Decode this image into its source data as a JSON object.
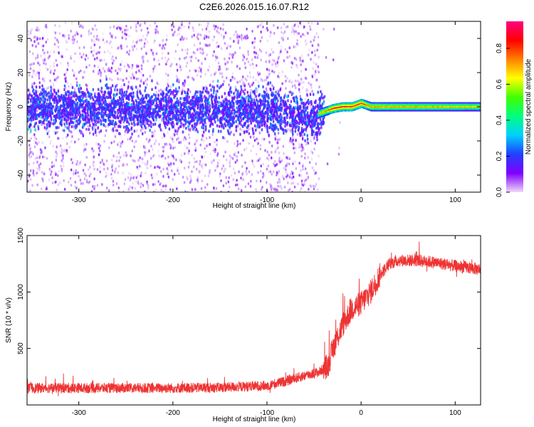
{
  "title": "C2E6.2026.015.16.07.R12",
  "chart_data": [
    {
      "type": "heatmap",
      "xlabel": "Height of straight line (km)",
      "ylabel": "Frequency (Hz)",
      "xlim": [
        -355,
        127
      ],
      "ylim": [
        -50,
        50
      ],
      "xticks": [
        -300,
        -200,
        -100,
        0,
        100
      ],
      "yticks": [
        -40,
        -20,
        0,
        20,
        40
      ],
      "colorbar": {
        "label": "Normalized spectral amplitude",
        "range": [
          0,
          0.95
        ],
        "ticks": [
          0,
          0.2,
          0.4,
          0.6,
          0.8
        ],
        "tick_labels": [
          "0.0",
          "0.2",
          "0.4",
          "0.6",
          "0.8"
        ],
        "colors": [
          "#f0d8f8",
          "#8000ff",
          "#2040ff",
          "#00d0ff",
          "#00ff80",
          "#40ff00",
          "#ffff00",
          "#ff8000",
          "#ff0000",
          "#ff0080"
        ]
      },
      "ridge": [
        {
          "x": -355,
          "y": 0,
          "amplitude": 0.25
        },
        {
          "x": -200,
          "y": 0,
          "amplitude": 0.25
        },
        {
          "x": -100,
          "y": -1,
          "amplitude": 0.3
        },
        {
          "x": -80,
          "y": -3,
          "amplitude": 0.4
        },
        {
          "x": -60,
          "y": -5,
          "amplitude": 0.4
        },
        {
          "x": -50,
          "y": -5,
          "amplitude": 0.7
        },
        {
          "x": -40,
          "y": -3,
          "amplitude": 0.75
        },
        {
          "x": -30,
          "y": -1,
          "amplitude": 0.85
        },
        {
          "x": -20,
          "y": 0,
          "amplitude": 0.85
        },
        {
          "x": -10,
          "y": 0,
          "amplitude": 0.85
        },
        {
          "x": 0,
          "y": 2,
          "amplitude": 0.85
        },
        {
          "x": 10,
          "y": 0,
          "amplitude": 0.75
        },
        {
          "x": 127,
          "y": 0,
          "amplitude": 0.7
        }
      ]
    },
    {
      "type": "line",
      "xlabel": "Height of straight line (km)",
      "ylabel": "SNR (10 * v/v)",
      "xlim": [
        -355,
        127
      ],
      "ylim": [
        0,
        1500
      ],
      "xticks": [
        -300,
        -200,
        -100,
        0,
        100
      ],
      "yticks": [
        500,
        1000,
        1500
      ],
      "color": "#ee3333",
      "series": [
        {
          "name": "SNR",
          "x": [
            -355,
            -300,
            -250,
            -200,
            -150,
            -100,
            -80,
            -60,
            -45,
            -35,
            -30,
            -20,
            -10,
            0,
            10,
            20,
            30,
            40,
            60,
            80,
            100,
            127
          ],
          "y": [
            150,
            150,
            150,
            150,
            155,
            170,
            210,
            260,
            290,
            350,
            500,
            700,
            850,
            900,
            1000,
            1150,
            1250,
            1280,
            1280,
            1260,
            1230,
            1200
          ]
        }
      ]
    }
  ]
}
